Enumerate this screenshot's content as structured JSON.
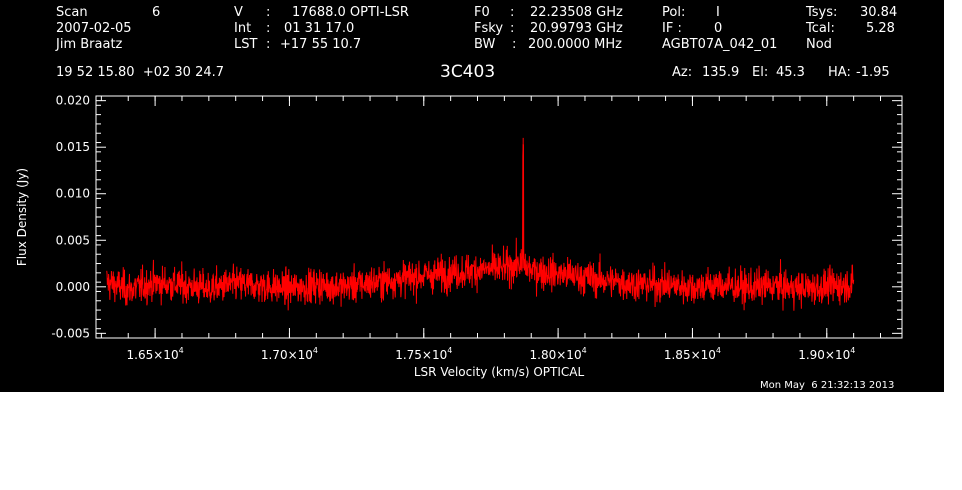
{
  "header": {
    "row1": {
      "scan_label": "Scan",
      "scan_value": "6",
      "v_label": "V",
      "v_value": "17688.0 OPTI-LSR",
      "f0_label": "F0",
      "f0_value": "22.23508 GHz",
      "pol_label": "Pol:",
      "pol_value": "I",
      "tsys_label": "Tsys:",
      "tsys_value": "30.84"
    },
    "row2": {
      "date": "2007-02-05",
      "int_label": "Int",
      "int_value": "01 31 17.0",
      "fsky_label": "Fsky",
      "fsky_value": "20.99793 GHz",
      "if_label": "IF :",
      "if_value": "0",
      "tcal_label": "Tcal:",
      "tcal_value": "5.28"
    },
    "row3": {
      "observer": "Jim Braatz",
      "lst_label": "LST",
      "lst_value": "+17 55 10.7",
      "bw_label": "BW",
      "bw_value": "200.0000 MHz",
      "project": "AGBT07A_042_01",
      "proc": "Nod"
    },
    "coords": "19 52 15.80  +02 30 24.7",
    "source": "3C403",
    "az_label": "Az:",
    "az_value": "135.9",
    "el_label": "El:",
    "el_value": "45.3",
    "ha_label": "HA:",
    "ha_value": "-1.95"
  },
  "timestamp": "Mon May  6 21:32:13 2013",
  "chart_data": {
    "type": "line",
    "title": "3C403",
    "xlabel": "LSR Velocity (km/s) OPTICAL",
    "ylabel": "Flux Density (Jy)",
    "xlim": [
      16280,
      19280
    ],
    "ylim": [
      -0.0055,
      0.0205
    ],
    "x_ticks": [
      {
        "value": 16500,
        "mantissa": "1.65",
        "exp": "4"
      },
      {
        "value": 17000,
        "mantissa": "1.70",
        "exp": "4"
      },
      {
        "value": 17500,
        "mantissa": "1.75",
        "exp": "4"
      },
      {
        "value": 18000,
        "mantissa": "1.80",
        "exp": "4"
      },
      {
        "value": 18500,
        "mantissa": "1.85",
        "exp": "4"
      },
      {
        "value": 19000,
        "mantissa": "1.90",
        "exp": "4"
      }
    ],
    "y_ticks": [
      {
        "value": -0.005,
        "label": "-0.005"
      },
      {
        "value": 0.0,
        "label": "0.000"
      },
      {
        "value": 0.005,
        "label": "0.005"
      },
      {
        "value": 0.01,
        "label": "0.010"
      },
      {
        "value": 0.015,
        "label": "0.015"
      },
      {
        "value": 0.02,
        "label": "0.020"
      }
    ],
    "series": [
      {
        "color": "#ff0000",
        "x": [
          16320,
          16400,
          16500,
          16600,
          16700,
          16800,
          16900,
          17000,
          17100,
          17200,
          17300,
          17400,
          17500,
          17600,
          17700,
          17800,
          17860,
          17870,
          17880,
          17900,
          18000,
          18100,
          18200,
          18300,
          18400,
          18500,
          18600,
          18700,
          18800,
          18900,
          19000,
          19100
        ],
        "y": [
          0.0005,
          -0.0003,
          0.0004,
          0.0002,
          -0.0002,
          0.0003,
          0.0001,
          -0.0002,
          0.0002,
          0.0,
          0.0004,
          0.0008,
          0.0012,
          0.0015,
          0.0018,
          0.002,
          0.0025,
          0.016,
          0.0022,
          0.0018,
          0.0014,
          0.001,
          0.0006,
          0.0003,
          0.0002,
          0.0,
          0.0002,
          -0.0001,
          0.0001,
          -0.0002,
          0.0,
          0.0003
        ],
        "noise_rms": 0.0013
      }
    ]
  }
}
